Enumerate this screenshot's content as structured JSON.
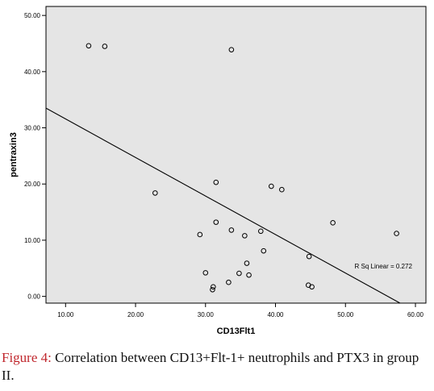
{
  "chart_data": {
    "type": "scatter",
    "title": "",
    "xlabel": "CD13Flt1",
    "ylabel": "pentraxin3",
    "xlim": [
      7.2,
      61.5
    ],
    "ylim": [
      -1.2,
      51.6
    ],
    "xticks": [
      10,
      20,
      30,
      40,
      50,
      60
    ],
    "yticks": [
      0,
      10,
      20,
      30,
      40,
      50
    ],
    "xtick_labels": [
      "10.00",
      "20.00",
      "30.00",
      "40.00",
      "50.00",
      "60.00"
    ],
    "ytick_labels": [
      "0.00",
      "10.00",
      "20.00",
      "30.00",
      "40.00",
      "50.00"
    ],
    "grid": false,
    "background": "#e5e5e5",
    "series": [
      {
        "marker": "open-circle",
        "color": "#000000",
        "points": [
          {
            "x": 13.3,
            "y": 44.6
          },
          {
            "x": 15.6,
            "y": 44.5
          },
          {
            "x": 33.7,
            "y": 43.9
          },
          {
            "x": 22.8,
            "y": 18.4
          },
          {
            "x": 31.5,
            "y": 20.3
          },
          {
            "x": 39.4,
            "y": 19.6
          },
          {
            "x": 40.9,
            "y": 19.0
          },
          {
            "x": 31.5,
            "y": 13.2
          },
          {
            "x": 48.2,
            "y": 13.1
          },
          {
            "x": 29.2,
            "y": 11.0
          },
          {
            "x": 33.7,
            "y": 11.8
          },
          {
            "x": 37.9,
            "y": 11.6
          },
          {
            "x": 57.3,
            "y": 11.2
          },
          {
            "x": 35.6,
            "y": 10.8
          },
          {
            "x": 38.3,
            "y": 8.1
          },
          {
            "x": 44.8,
            "y": 7.1
          },
          {
            "x": 35.9,
            "y": 5.9
          },
          {
            "x": 30.0,
            "y": 4.2
          },
          {
            "x": 34.8,
            "y": 4.1
          },
          {
            "x": 36.2,
            "y": 3.8
          },
          {
            "x": 33.3,
            "y": 2.5
          },
          {
            "x": 31.1,
            "y": 1.7
          },
          {
            "x": 31.0,
            "y": 1.2
          },
          {
            "x": 44.7,
            "y": 2.0
          },
          {
            "x": 45.2,
            "y": 1.7
          }
        ]
      }
    ],
    "fit_line": {
      "type": "linear",
      "x": [
        7.2,
        57.8
      ],
      "y": [
        33.5,
        -1.2
      ],
      "color": "#000000"
    },
    "annotations": [
      {
        "text": "R Sq Linear = 0.272",
        "x": 51.3,
        "y": 5.0
      }
    ]
  },
  "caption": {
    "label": "Figure 4:",
    "text": " Correlation between CD13+Flt-1+ neutrophils and PTX3 in group II."
  }
}
